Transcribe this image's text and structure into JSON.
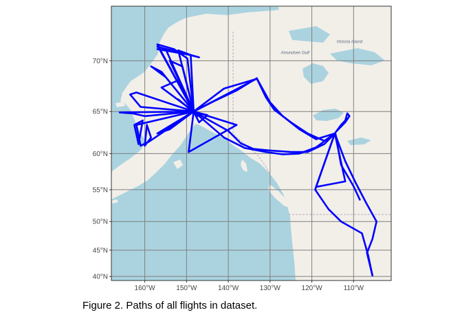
{
  "caption": "Figure 2. Paths of all flights in dataset.",
  "map": {
    "lon_range": [
      -168,
      -101
    ],
    "lat_range": [
      39.2,
      74.3
    ],
    "lon_ticks": [
      {
        "value": -160,
        "label": "160°W"
      },
      {
        "value": -150,
        "label": "150°W"
      },
      {
        "value": -140,
        "label": "140°W"
      },
      {
        "value": -130,
        "label": "130°W"
      },
      {
        "value": -120,
        "label": "120°W"
      },
      {
        "value": -110,
        "label": "110°W"
      }
    ],
    "lat_ticks": [
      {
        "value": 70,
        "label": "70°N"
      },
      {
        "value": 65,
        "label": "65°N"
      },
      {
        "value": 60,
        "label": "60°N"
      },
      {
        "value": 55,
        "label": "55°N"
      },
      {
        "value": 50,
        "label": "50°N"
      },
      {
        "value": 45,
        "label": "45°N"
      },
      {
        "value": 40,
        "label": "40°N"
      }
    ],
    "place_labels": [
      {
        "name": "Amundsen Gulf",
        "lon": -124.0,
        "lat": 70.6
      },
      {
        "name": "Victoria Island",
        "lon": -111.0,
        "lat": 71.5
      }
    ],
    "colors": {
      "water": "#aad3df",
      "land": "#f2efe9",
      "grid": "#7f7f7f",
      "flight_path": "#0000ff",
      "border": "#b9a8b9"
    },
    "basemap": "OpenStreetMap"
  },
  "flights": [
    [
      [
        -152,
        66.3
      ],
      [
        -148.5,
        65.0
      ],
      [
        -147,
        64.8
      ],
      [
        -147.4,
        64.5
      ]
    ],
    [
      [
        -148.3,
        65.0
      ],
      [
        -157,
        71.4
      ],
      [
        -153,
        71.0
      ],
      [
        -149.8,
        70.2
      ],
      [
        -148.3,
        65.0
      ]
    ],
    [
      [
        -148.3,
        65.0
      ],
      [
        -152,
        70.9
      ],
      [
        -149,
        70.5
      ],
      [
        -148.3,
        65.0
      ]
    ],
    [
      [
        -148.3,
        65.0
      ],
      [
        -155,
        71.0
      ],
      [
        -156.8,
        71.2
      ],
      [
        -148.3,
        65.0
      ]
    ],
    [
      [
        -157,
        71.2
      ],
      [
        -147,
        70.3
      ],
      [
        -149,
        70.5
      ],
      [
        -157,
        71.0
      ]
    ],
    [
      [
        -148.3,
        65.0
      ],
      [
        -154,
        70.0
      ],
      [
        -151,
        69.5
      ],
      [
        -148.3,
        65.0
      ]
    ],
    [
      [
        -148.3,
        65.0
      ],
      [
        -152,
        68.2
      ],
      [
        -156,
        67.5
      ],
      [
        -148.3,
        65.0
      ]
    ],
    [
      [
        -148.3,
        65.0
      ],
      [
        -156,
        69.0
      ],
      [
        -158.5,
        69.5
      ],
      [
        -155,
        68.5
      ],
      [
        -148.3,
        65.0
      ]
    ],
    [
      [
        -148.3,
        65.0
      ],
      [
        -162,
        67.0
      ],
      [
        -163.5,
        66.8
      ],
      [
        -161,
        65.5
      ],
      [
        -148.3,
        65.0
      ]
    ],
    [
      [
        -148.3,
        65.0
      ],
      [
        -166,
        64.9
      ],
      [
        -163,
        64.8
      ],
      [
        -160,
        64.5
      ],
      [
        -148.3,
        65.0
      ]
    ],
    [
      [
        -148.3,
        65.0
      ],
      [
        -162,
        63.5
      ],
      [
        -161,
        61.0
      ],
      [
        -159,
        61.5
      ],
      [
        -148.3,
        65.0
      ]
    ],
    [
      [
        -148.3,
        65.0
      ],
      [
        -157,
        62.5
      ],
      [
        -154,
        63.0
      ],
      [
        -148.3,
        65.0
      ]
    ],
    [
      [
        -160,
        61.0
      ],
      [
        -159.5,
        63.5
      ],
      [
        -158.5,
        62.0
      ],
      [
        -160,
        61.0
      ]
    ],
    [
      [
        -161.5,
        61.2
      ],
      [
        -160.5,
        64.0
      ],
      [
        -162.5,
        63.5
      ],
      [
        -161.5,
        61.2
      ]
    ],
    [
      [
        -148.3,
        65.0
      ],
      [
        -145,
        64.6
      ],
      [
        -147,
        63.8
      ],
      [
        -148.3,
        65.0
      ]
    ],
    [
      [
        -148.3,
        65.0
      ],
      [
        -143,
        66.2
      ],
      [
        -138,
        67.2
      ],
      [
        -134,
        68.2
      ],
      [
        -133.2,
        68.4
      ]
    ],
    [
      [
        -148.3,
        65.0
      ],
      [
        -141,
        67.4
      ],
      [
        -136,
        68.0
      ],
      [
        -133.5,
        68.3
      ],
      [
        -148.3,
        65.0
      ]
    ],
    [
      [
        -133.2,
        68.4
      ],
      [
        -131,
        66.5
      ],
      [
        -129,
        65.2
      ],
      [
        -125,
        63.8
      ],
      [
        -121,
        62.5
      ],
      [
        -117,
        61.6
      ],
      [
        -114.5,
        62.5
      ]
    ],
    [
      [
        -133.2,
        68.4
      ],
      [
        -130,
        66.0
      ],
      [
        -127,
        64.5
      ],
      [
        -123,
        63.0
      ],
      [
        -119,
        61.8
      ],
      [
        -114.5,
        62.5
      ]
    ],
    [
      [
        -148.3,
        65.0
      ],
      [
        -140,
        62.8
      ],
      [
        -137,
        61.3
      ],
      [
        -134,
        60.6
      ],
      [
        -130,
        60.4
      ],
      [
        -125,
        60.2
      ],
      [
        -121,
        60.2
      ],
      [
        -117,
        61.2
      ],
      [
        -114.5,
        62.5
      ]
    ],
    [
      [
        -148.3,
        65.0
      ],
      [
        -141,
        62.0
      ],
      [
        -136,
        60.7
      ],
      [
        -131,
        60.2
      ],
      [
        -127,
        59.9
      ],
      [
        -123,
        60.0
      ],
      [
        -119,
        60.8
      ],
      [
        -115,
        62.3
      ]
    ],
    [
      [
        -148.3,
        65.0
      ],
      [
        -138,
        63.5
      ],
      [
        -149.5,
        60.2
      ],
      [
        -148.3,
        65.0
      ]
    ],
    [
      [
        -114.5,
        62.5
      ],
      [
        -113,
        63.5
      ],
      [
        -112,
        64.0
      ],
      [
        -111.5,
        64.8
      ],
      [
        -111,
        64.5
      ],
      [
        -112,
        63.8
      ],
      [
        -114,
        62.8
      ]
    ],
    [
      [
        -114.5,
        62.5
      ],
      [
        -119,
        55.4
      ],
      [
        -112,
        56.2
      ],
      [
        -114.5,
        62.5
      ]
    ],
    [
      [
        -114.5,
        62.5
      ],
      [
        -119.2,
        55.0
      ],
      [
        -116,
        52.0
      ],
      [
        -113,
        50.0
      ],
      [
        -108,
        48.0
      ],
      [
        -106.5,
        44.0
      ],
      [
        -105.5,
        40.2
      ]
    ],
    [
      [
        -114.5,
        62.5
      ],
      [
        -112,
        59.0
      ],
      [
        -109.5,
        56.0
      ],
      [
        -107,
        53.0
      ],
      [
        -104.5,
        50.0
      ],
      [
        -105.5,
        47.0
      ],
      [
        -106.8,
        44.5
      ],
      [
        -105.5,
        40.2
      ]
    ],
    [
      [
        -114.3,
        62.4
      ],
      [
        -113,
        58.5
      ],
      [
        -110,
        55.5
      ],
      [
        -108.5,
        53.5
      ]
    ]
  ]
}
